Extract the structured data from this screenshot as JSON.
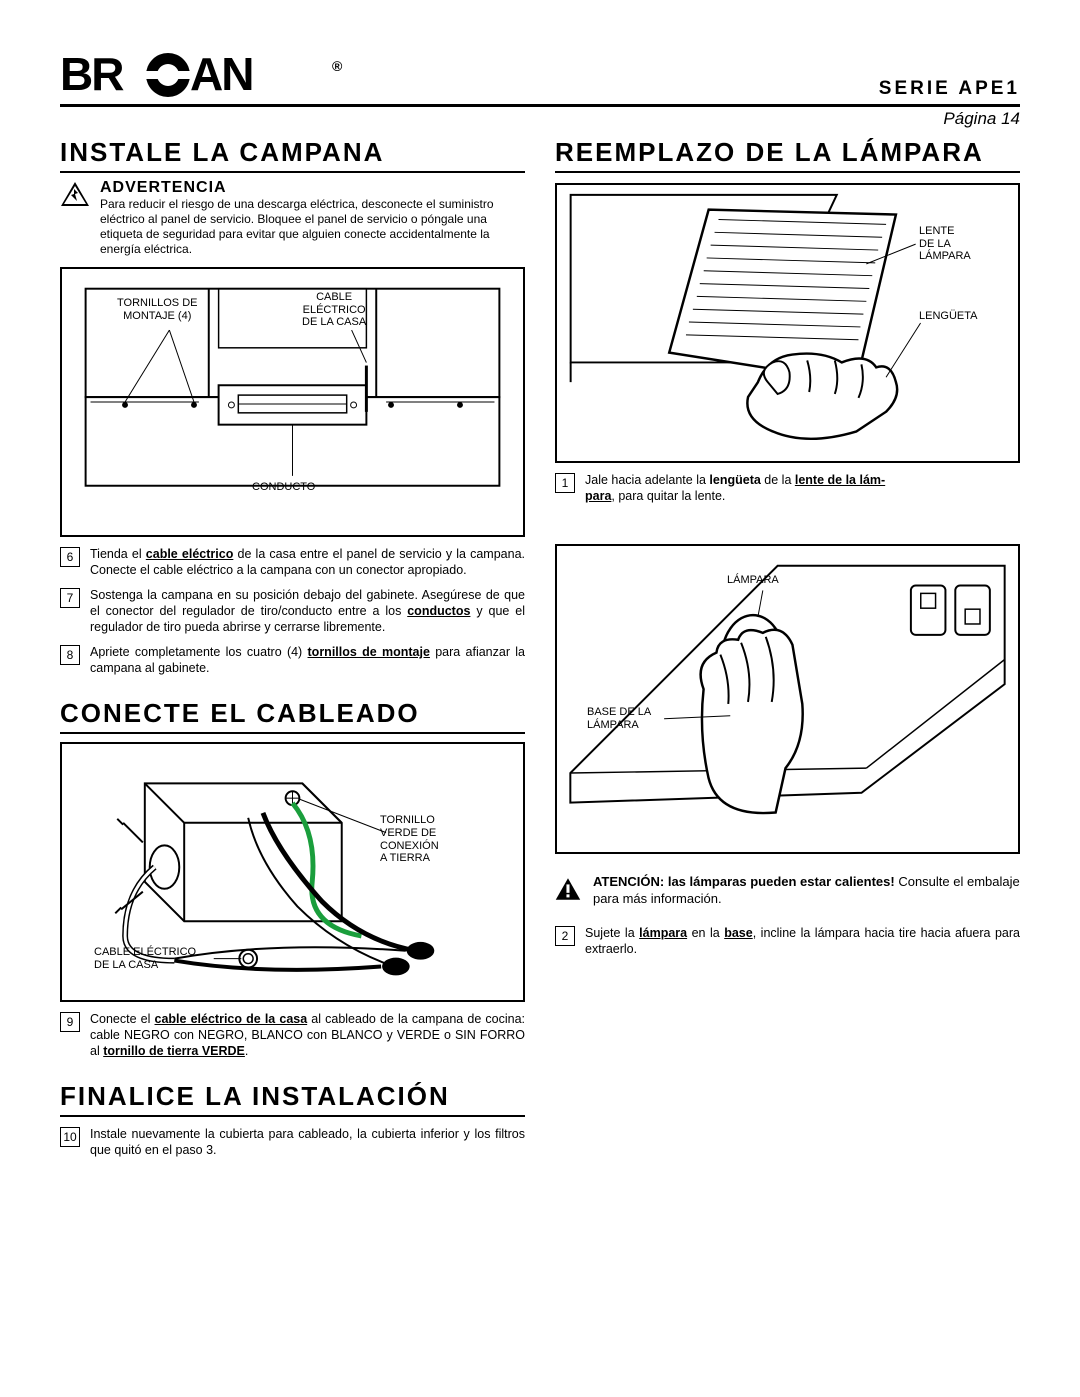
{
  "brand": {
    "name": "BROAN",
    "registered": "®"
  },
  "header": {
    "series": "SERIE  APE1",
    "page": "Página 14"
  },
  "left": {
    "sec1_title": "INSTALE LA CAMPANA",
    "warning_title": "ADVERTENCIA",
    "warning_text": "Para reducir el riesgo de una descarga eléctrica, desconecte el suministro eléctrico al panel de servicio. Bloquee el panel de servicio o póngale una etiqueta de seguridad para evitar que alguien conecte accidentalmente la energía eléctrica.",
    "fig1_labels": {
      "mounting_screws": "TORNILLOS DE\nMONTAJE (4)",
      "house_cable": "CABLE\nELÉCTRICO\nDE LA CASA",
      "duct": "CONDUCTO"
    },
    "step6_num": "6",
    "step6": "Tienda el <b><u>cable eléctrico</u></b> de la casa entre el panel de servicio y la campana. Conecte el cable eléctrico a la campana con un conector apropiado.",
    "step7_num": "7",
    "step7": "Sostenga la campana en su posición debajo del gabinete. Asegúrese de que el conector del regulador de tiro/conducto entre a los <b><u>conductos</u></b> y que el regulador de tiro pueda abrirse y cerrarse libremente.",
    "step8_num": "8",
    "step8": "Apriete completamente los cuatro (4) <b><u>tornillos de montaje</u></b> para afianzar la campana al gabinete.",
    "sec2_title": "CONECTE EL CABLEADO",
    "fig2_labels": {
      "ground_screw": "TORNILLO\nVERDE DE\nCONEXIÓN\nA TIERRA",
      "house_cable2": "CABLE ELÉCTRICO\nDE LA CASA"
    },
    "step9_num": "9",
    "step9": "Conecte el <b><u>cable eléctrico de la casa</u></b> al cableado de la campana de cocina: cable NEGRO con NEGRO, BLANCO con BLANCO y VERDE o SIN FORRO al <b><u>tornillo de tierra VERDE</u></b>.",
    "sec3_title": "FINALICE LA INSTALACIÓN",
    "step10_num": "10",
    "step10": "Instale nuevamente la cubierta para cableado, la cubierta inferior y los filtros que quitó en el paso 3."
  },
  "right": {
    "sec_title": "REEMPLAZO DE LA LÁMPARA",
    "fig3_labels": {
      "lamp_lens": "LENTE\nDE LA\nLÁMPARA",
      "tab": "LENGÜETA"
    },
    "step1_num": "1",
    "step1": "Jale hacia adelante la <b>lengüeta</b> de la <b><u>lente de la lám-<br>para</u></b>, para quitar la lente.",
    "fig4_labels": {
      "lamp": "LÁMPARA",
      "socket": "BASE DE LA\nLÁMPARA"
    },
    "caution_bold": "ATENCIÓN: las lámparas pueden estar calientes!",
    "caution_rest": " Consulte el embalaje para más información.",
    "step2_num": "2",
    "step2": "Sujete la <b><u>lámpara</u></b> en la <b><u>base</u></b>, incline la lámpara hacia tire hacia afuera para extraerlo."
  },
  "colors": {
    "text": "#000000",
    "bg": "#ffffff",
    "green": "#1a9e3c"
  }
}
